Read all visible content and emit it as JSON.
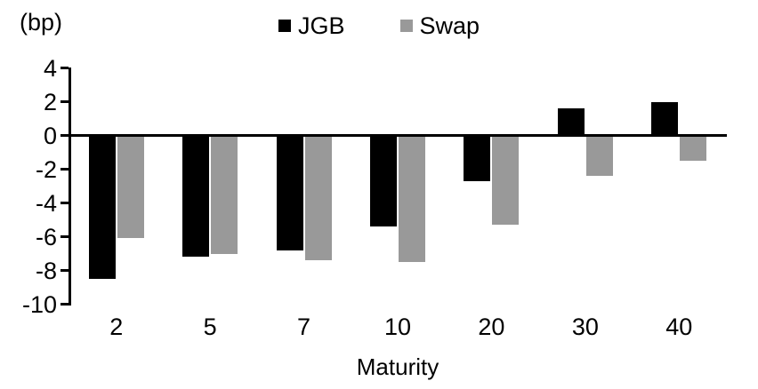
{
  "chart_data": {
    "type": "bar",
    "title": "",
    "unit_label": "(bp)",
    "xlabel": "Maturity",
    "ylabel": "",
    "categories": [
      "2",
      "5",
      "7",
      "10",
      "20",
      "30",
      "40"
    ],
    "series": [
      {
        "name": "JGB",
        "color": "#000000",
        "values": [
          -8.5,
          -7.2,
          -6.8,
          -5.4,
          -2.7,
          1.6,
          2.0
        ]
      },
      {
        "name": "Swap",
        "color": "#999999",
        "values": [
          -6.1,
          -7.0,
          -7.4,
          -7.5,
          -5.3,
          -2.4,
          -1.5
        ]
      }
    ],
    "ylim": [
      -10,
      4
    ],
    "yticks": [
      4,
      2,
      0,
      -2,
      -4,
      -6,
      -8,
      -10
    ],
    "ytick_step": 2,
    "legend_position": "top-center",
    "grid": false,
    "axis_color": "#000000",
    "background_color": "#ffffff"
  }
}
